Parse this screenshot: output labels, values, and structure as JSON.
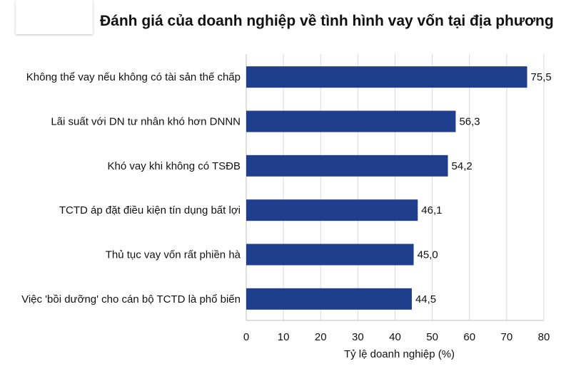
{
  "chart_data": {
    "type": "bar",
    "orientation": "horizontal",
    "title": "Đánh giá của doanh nghiệp về tình hình vay vốn tại địa phương",
    "categories": [
      "Không thể vay nếu không có tài sản thế chấp",
      "Lãi suất với DN tư nhân khó hơn DNNN",
      "Khó vay khi không có TSĐB",
      "TCTD áp đặt điều kiện tín dụng bất lợi",
      "Thủ tục vay vốn rất phiền hà",
      "Việc 'bồi dưỡng' cho cán bộ TCTD là phổ biến"
    ],
    "values": [
      75.5,
      56.3,
      54.2,
      46.1,
      45.0,
      44.5
    ],
    "value_labels": [
      "75,5",
      "56,3",
      "54,2",
      "46,1",
      "45,0",
      "44,5"
    ],
    "xlabel": "Tỷ lệ doanh nghiệp (%)",
    "ylabel": "",
    "xlim": [
      0,
      80
    ],
    "xticks": [
      "0",
      "10",
      "20",
      "30",
      "40",
      "50",
      "60",
      "70",
      "80"
    ],
    "grid": "vertical",
    "bar_color": "#1f3f8c"
  }
}
